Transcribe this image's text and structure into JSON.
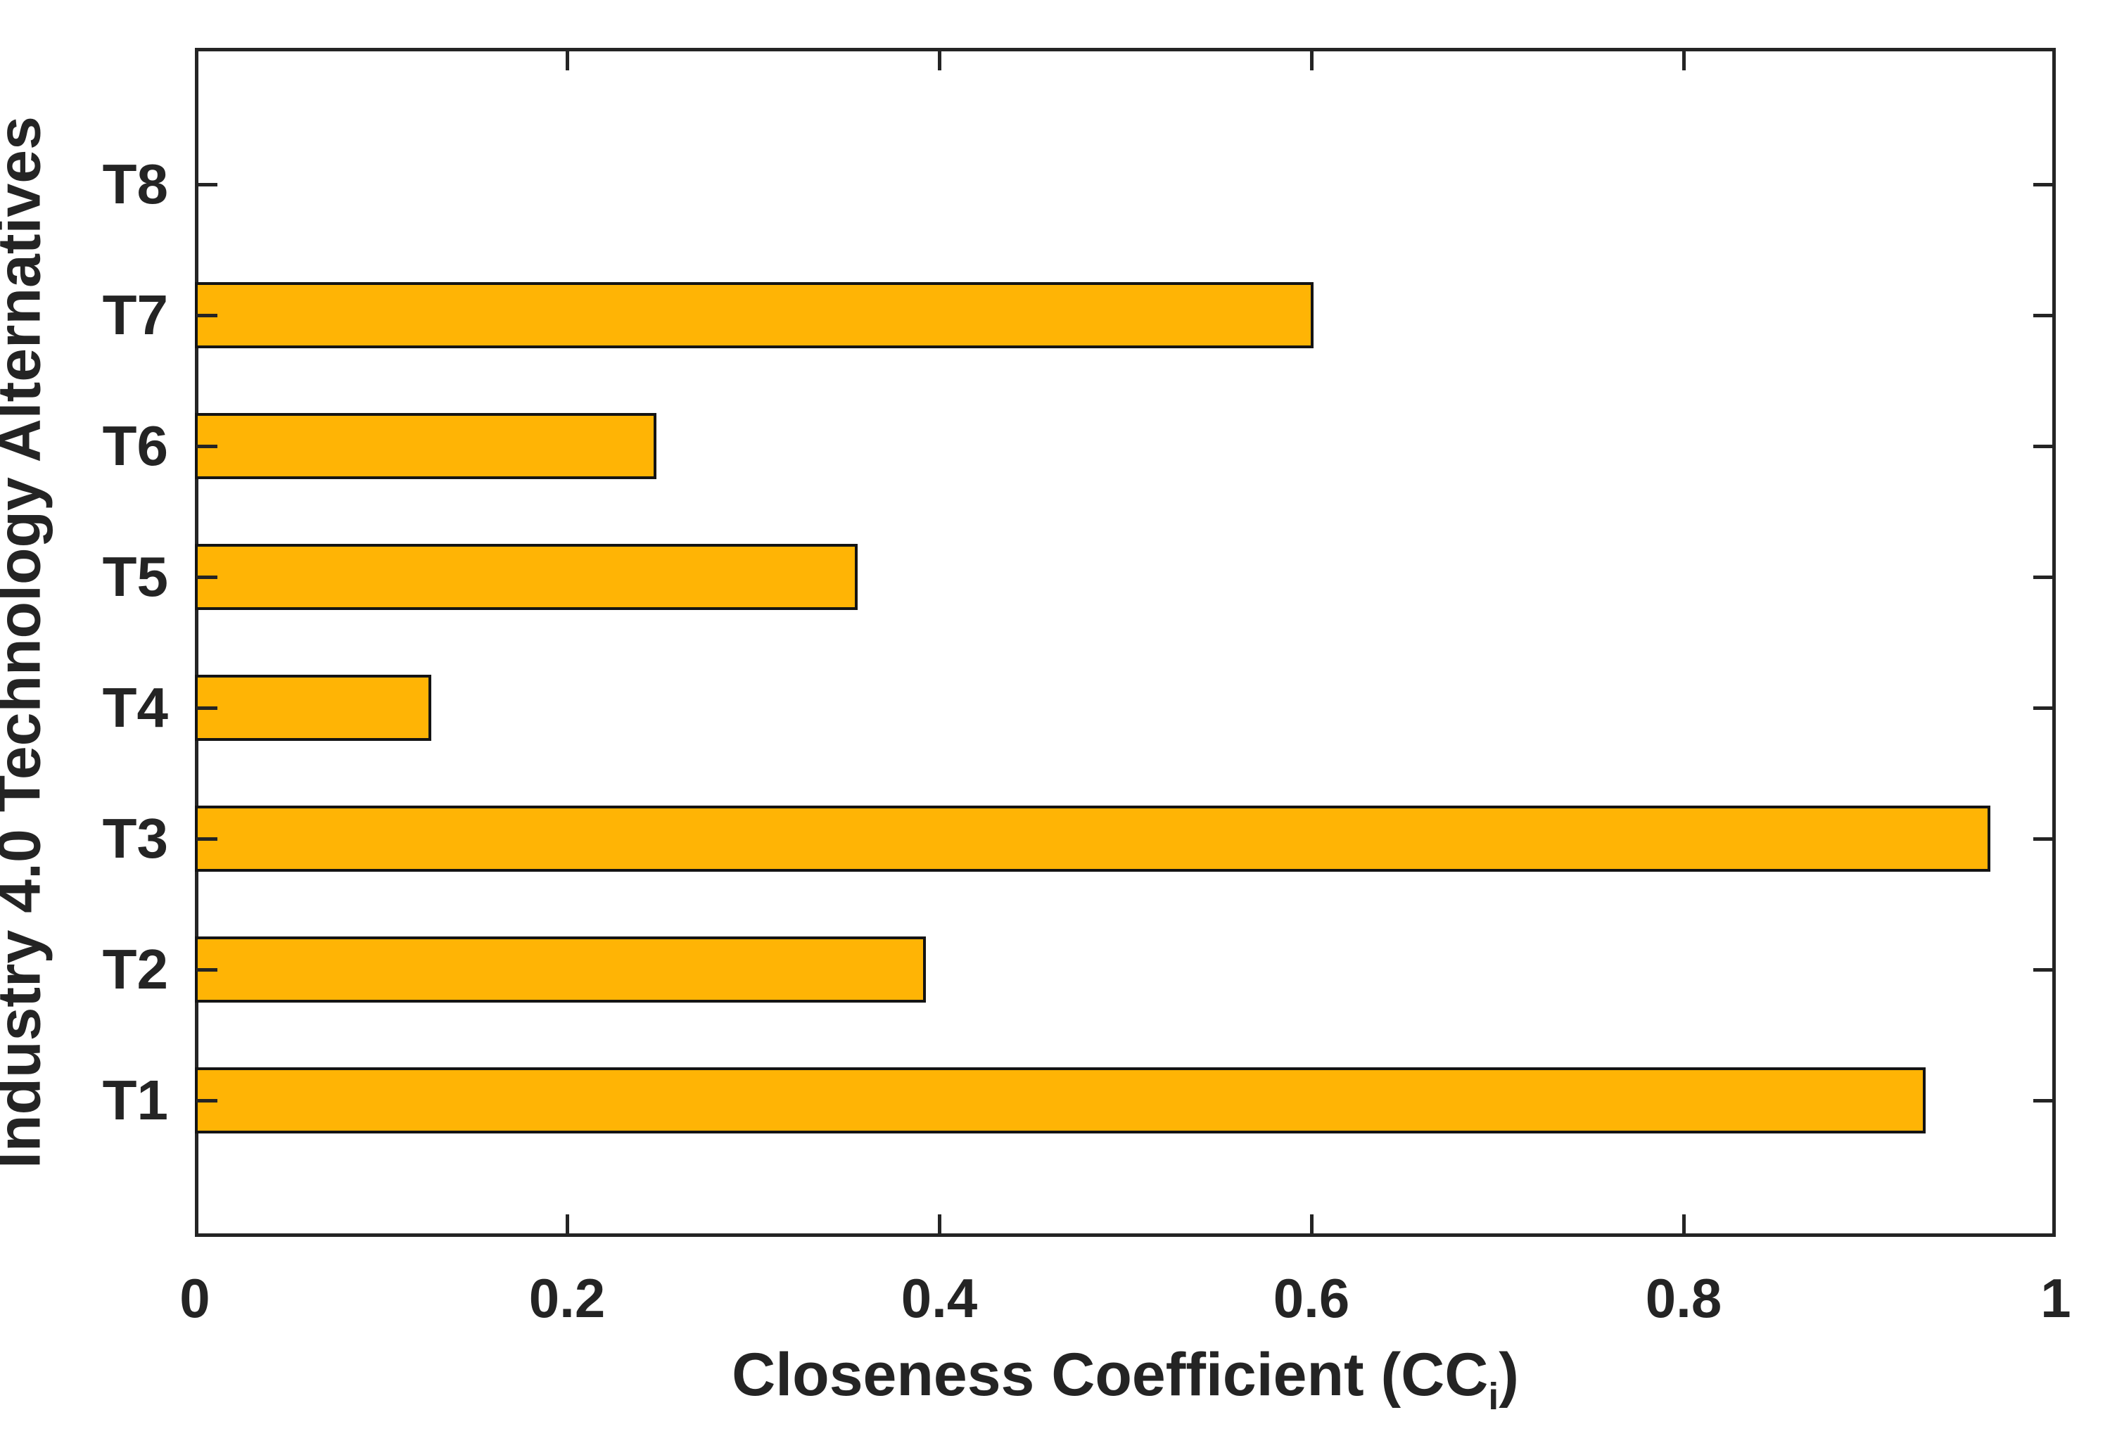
{
  "chart_data": {
    "type": "bar",
    "orientation": "horizontal",
    "title": "",
    "xlabel": "Closeness Coefficient (CC_i)",
    "xlabel_parts": {
      "prefix": "Closeness Coefficient (CC",
      "subscript": "i",
      "suffix": ")"
    },
    "ylabel": "Industry 4.0 Technology Alternatives",
    "categories": [
      "T1",
      "T2",
      "T3",
      "T4",
      "T5",
      "T6",
      "T7",
      "T8"
    ],
    "values": [
      0.93,
      0.393,
      0.965,
      0.127,
      0.356,
      0.248,
      0.601,
      0
    ],
    "xlim": [
      0,
      1
    ],
    "xticks": [
      0,
      0.2,
      0.4,
      0.6,
      0.8,
      1
    ],
    "xtick_labels": [
      "0",
      "0.2",
      "0.4",
      "0.6",
      "0.8",
      "1"
    ],
    "interior_xticks": [
      0.2,
      0.4,
      0.6,
      0.8
    ],
    "grid": false,
    "legend": null,
    "bar_color": "#FFB405",
    "bar_edge_color": "#141414",
    "axis_color": "#242424",
    "background_color": "#ffffff"
  }
}
